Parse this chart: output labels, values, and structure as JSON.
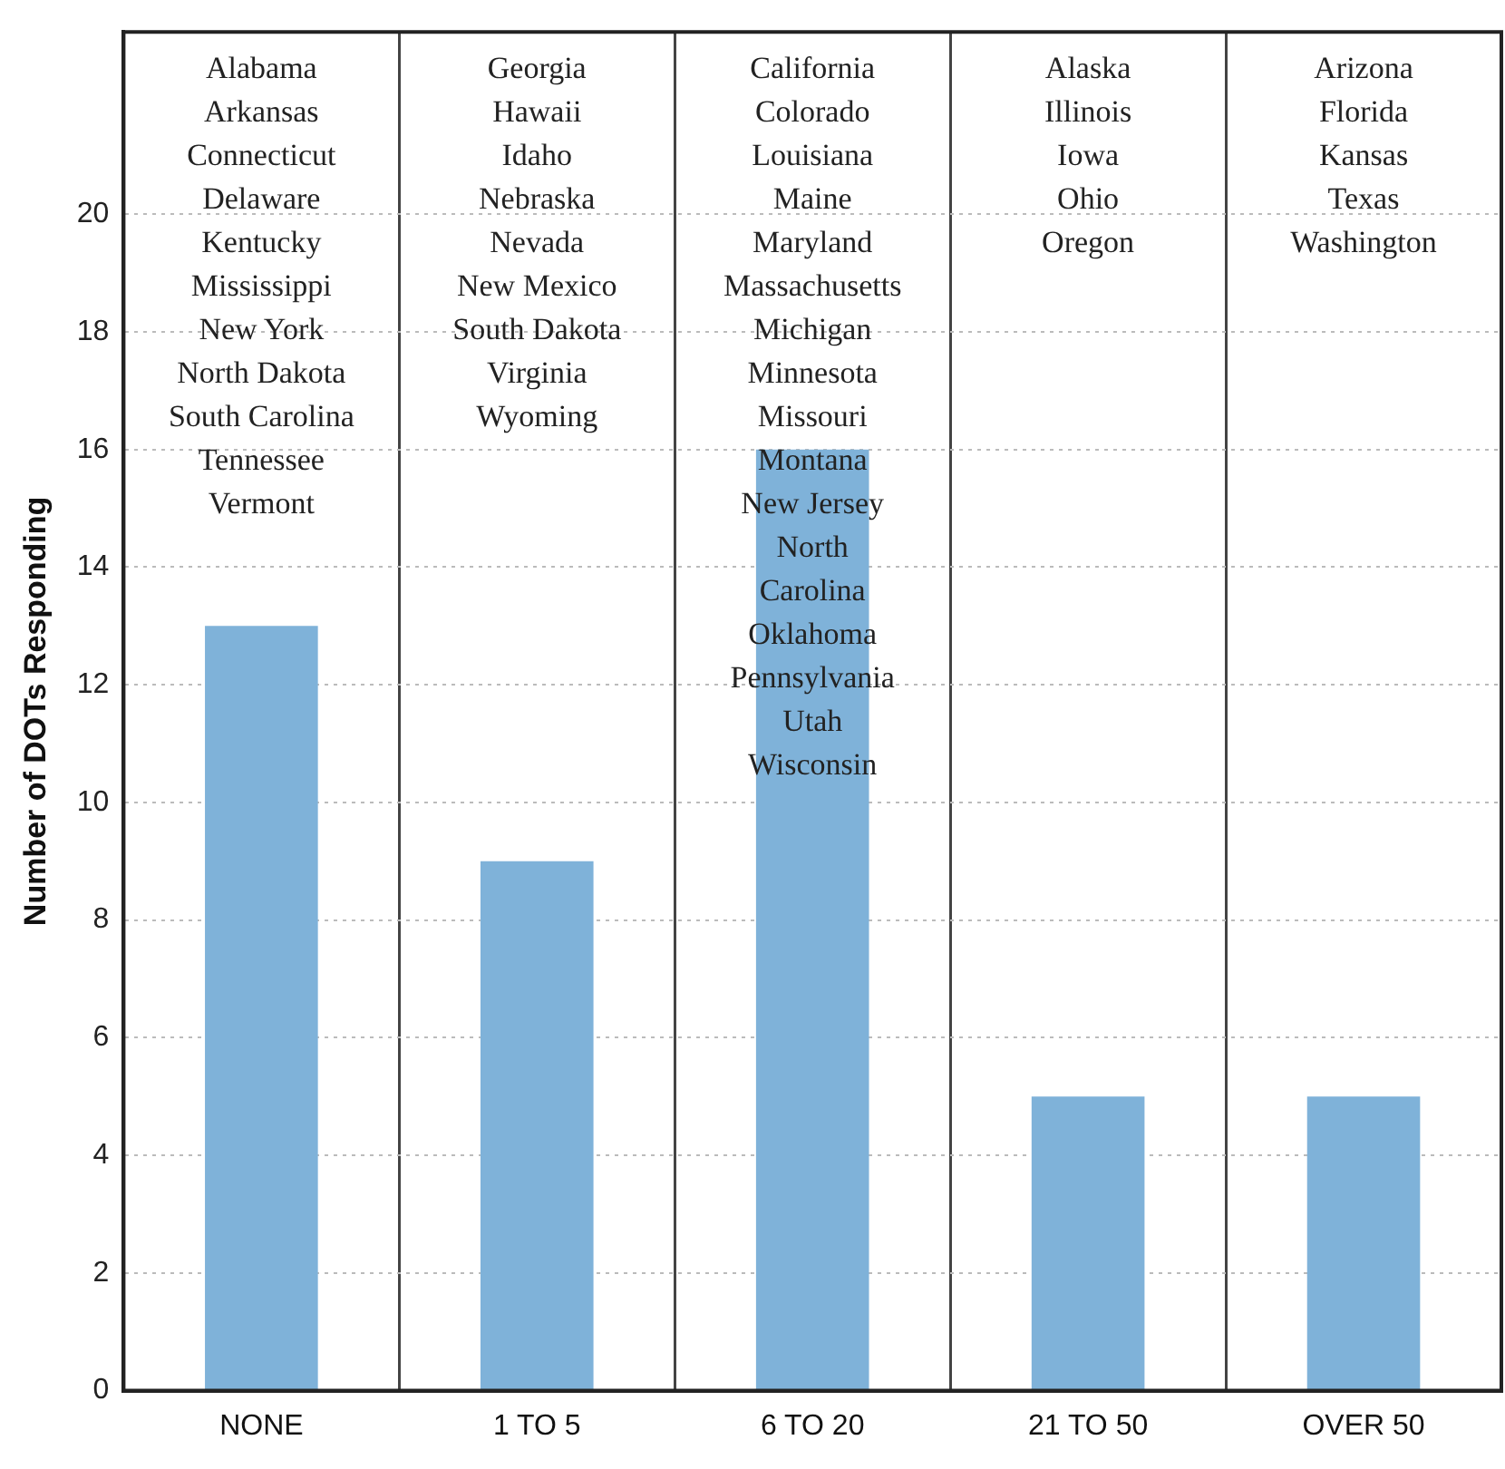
{
  "chart_data": {
    "type": "bar",
    "ylabel": "Number of DOTs Responding",
    "categories": [
      "NONE",
      "1 TO 5",
      "6 TO 20",
      "21 TO 50",
      "OVER 50"
    ],
    "values": [
      13,
      9,
      16,
      5,
      5
    ],
    "color": "#7fb2d9",
    "ylim": [
      0,
      23.1
    ],
    "yticks": [
      0,
      2,
      4,
      6,
      8,
      10,
      12,
      14,
      16,
      18,
      20
    ],
    "grid": true,
    "annotations": [
      "Alabama\nArkansas\nConnecticut\nDelaware\nKentucky\nMississippi\nNew York\nNorth Dakota\nSouth Carolina\nTennessee\nVermont",
      "Georgia\nHawaii\nIdaho\nNebraska\nNevada\nNew Mexico\nSouth Dakota\nVirginia\nWyoming",
      "California\nColorado\nLouisiana\nMaine\nMaryland\nMassachusetts\nMichigan\nMinnesota\nMissouri\nMontana\nNew Jersey\nNorth\nCarolina\nOklahoma\nPennsylvania\nUtah\nWisconsin",
      "Alaska\nIllinois\nIowa\nOhio\nOregon",
      "Arizona\nFlorida\nKansas\nTexas\nWashington"
    ]
  }
}
